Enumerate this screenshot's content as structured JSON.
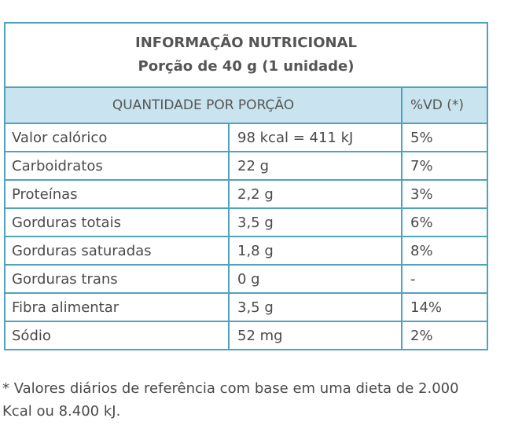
{
  "header": {
    "title": "INFORMAÇÃO NUTRICIONAL",
    "serving": "Porção de 40 g (1 unidade)"
  },
  "columns": {
    "quantity": "QUANTIDADE POR PORÇÃO",
    "daily_value": "%VD (*)"
  },
  "rows": [
    {
      "nutrient": "Valor calórico",
      "amount": "98 kcal = 411 kJ",
      "dv": "5%"
    },
    {
      "nutrient": "Carboidratos",
      "amount": "22 g",
      "dv": "7%"
    },
    {
      "nutrient": "Proteínas",
      "amount": "2,2 g",
      "dv": "3%"
    },
    {
      "nutrient": "Gorduras totais",
      "amount": "3,5 g",
      "dv": "6%"
    },
    {
      "nutrient": "Gorduras saturadas",
      "amount": "1,8 g",
      "dv": "8%"
    },
    {
      "nutrient": "Gorduras trans",
      "amount": "0 g",
      "dv": "-"
    },
    {
      "nutrient": "Fibra alimentar",
      "amount": "3,5 g",
      "dv": "14%"
    },
    {
      "nutrient": "Sódio",
      "amount": "52 mg",
      "dv": "2%"
    }
  ],
  "footnote": "* Valores diários de referência com base em uma dieta de 2.000 Kcal ou 8.400 kJ.",
  "colors": {
    "border": "#4fa3bd",
    "header_bg": "#c9e4ef",
    "text": "#4a4a4a"
  }
}
